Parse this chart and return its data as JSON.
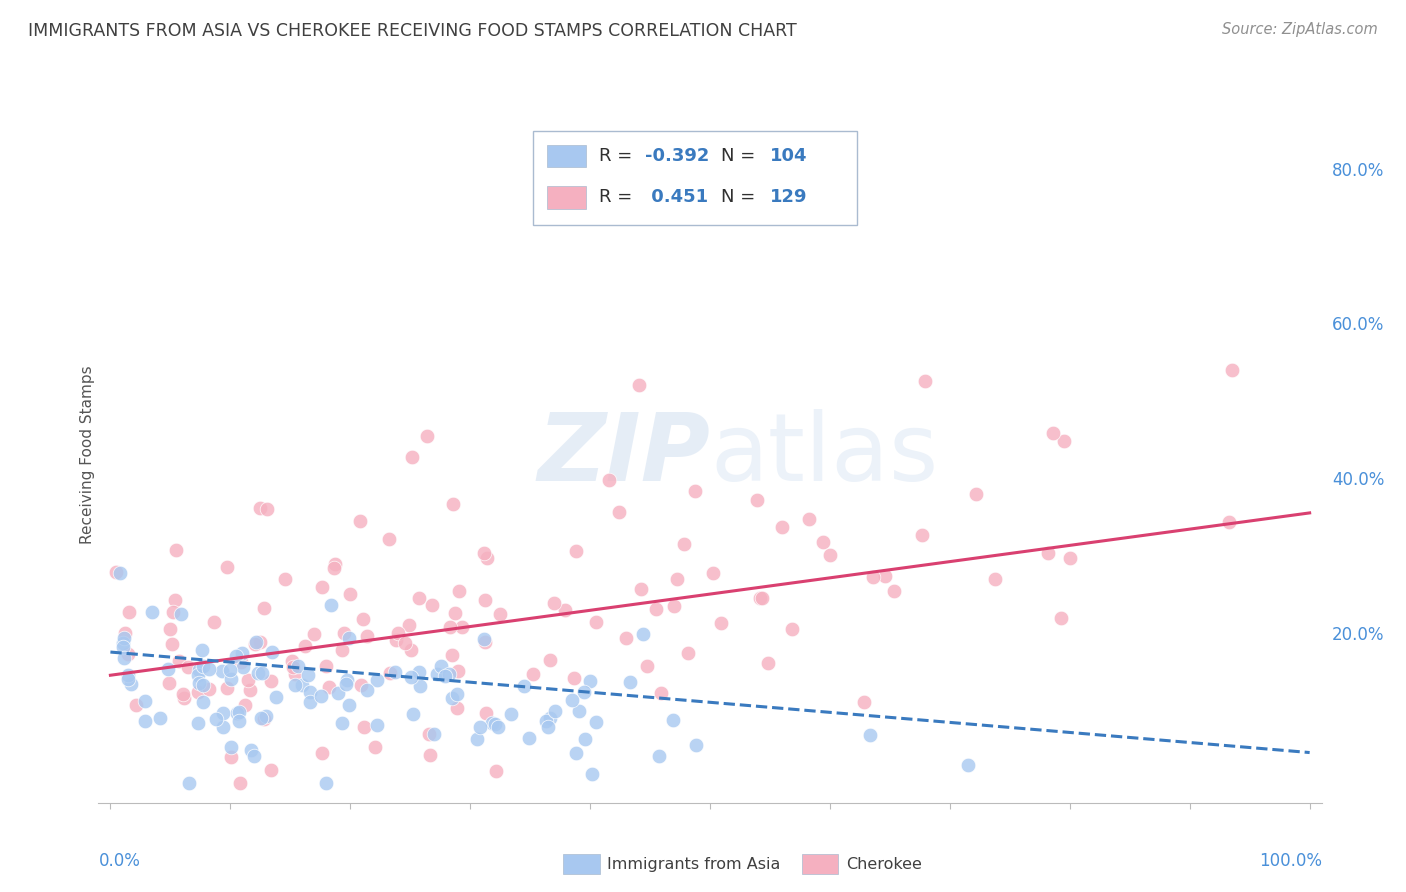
{
  "title": "IMMIGRANTS FROM ASIA VS CHEROKEE RECEIVING FOOD STAMPS CORRELATION CHART",
  "source": "Source: ZipAtlas.com",
  "ylabel": "Receiving Food Stamps",
  "right_yticklabels": [
    "",
    "20.0%",
    "40.0%",
    "60.0%",
    "80.0%"
  ],
  "right_ytick_vals": [
    0.0,
    0.2,
    0.4,
    0.6,
    0.8
  ],
  "legend_r1": "-0.392",
  "legend_n1": "104",
  "legend_r2": "0.451",
  "legend_n2": "129",
  "blue_scatter_color": "#a8c8f0",
  "pink_scatter_color": "#f5b0c0",
  "blue_line_color": "#3a7abf",
  "pink_line_color": "#d94070",
  "blue_text_color": "#3a7abf",
  "watermark_color": "#d0dff0",
  "background_color": "#ffffff",
  "grid_color": "#d0dde8",
  "title_color": "#404040",
  "source_color": "#909090",
  "axis_label_color": "#4a90d9",
  "N_blue": 104,
  "N_pink": 129,
  "R_blue": -0.392,
  "R_pink": 0.451,
  "blue_trend_x0": 0.0,
  "blue_trend_x1": 1.0,
  "blue_trend_y0": 0.175,
  "blue_trend_y1": 0.045,
  "pink_trend_x0": 0.0,
  "pink_trend_x1": 1.0,
  "pink_trend_y0": 0.145,
  "pink_trend_y1": 0.355,
  "ylim_min": -0.02,
  "ylim_max": 0.88,
  "xlim_min": -0.01,
  "xlim_max": 1.01
}
